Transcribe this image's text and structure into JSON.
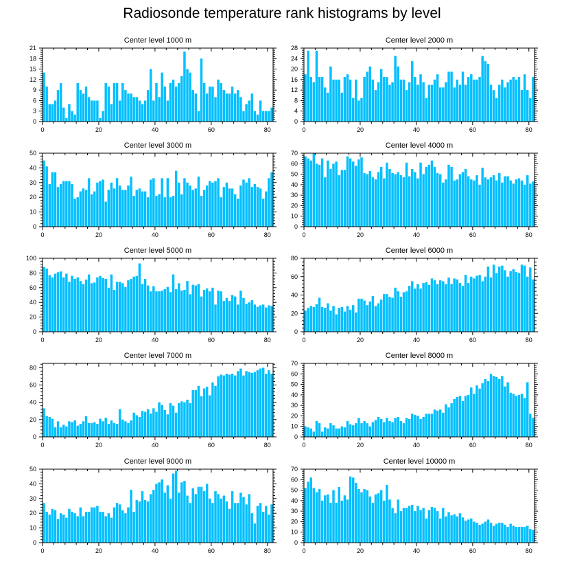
{
  "title": "Radiosonde temperature rank histograms by level",
  "colors": {
    "bar": "#00BFFF",
    "axis": "#000000",
    "background": "#ffffff"
  },
  "chart_data": [
    {
      "type": "bar",
      "title": "Center level 1000 m",
      "xlim": [
        0,
        82
      ],
      "ylim": [
        0,
        21
      ],
      "xticks": [
        0,
        20,
        40,
        60,
        80
      ],
      "yticks": [
        0,
        3,
        6,
        9,
        12,
        15,
        18,
        21
      ],
      "values": [
        14,
        10,
        5,
        5,
        6,
        9,
        11,
        4,
        1,
        5,
        3,
        2,
        11,
        9,
        8,
        10,
        7,
        6,
        6,
        6,
        1,
        3,
        11,
        10,
        5,
        11,
        11,
        6,
        11,
        9,
        8,
        8,
        7,
        7,
        6,
        5,
        6,
        9,
        15,
        6,
        11,
        7,
        14,
        10,
        6,
        11,
        12,
        10,
        11,
        13,
        20,
        15,
        14,
        9,
        8,
        3,
        18,
        11,
        8,
        10,
        10,
        7,
        12,
        11,
        9,
        8,
        8,
        10,
        8,
        9,
        7,
        3,
        5,
        6,
        8,
        3,
        2,
        6,
        3,
        3,
        3,
        4,
        4,
        3,
        4,
        5
      ]
    },
    {
      "type": "bar",
      "title": "Center level 2000 m",
      "xlim": [
        0,
        82
      ],
      "ylim": [
        0,
        28
      ],
      "xticks": [
        0,
        20,
        40,
        60,
        80
      ],
      "yticks": [
        0,
        4,
        8,
        12,
        16,
        20,
        24,
        28
      ],
      "values": [
        18,
        27,
        17,
        15,
        27,
        17,
        17,
        13,
        11,
        21,
        16,
        16,
        16,
        11,
        17,
        18,
        16,
        9,
        16,
        8,
        9,
        17,
        19,
        21,
        16,
        12,
        15,
        20,
        17,
        17,
        14,
        15,
        25,
        21,
        16,
        16,
        12,
        15,
        23,
        17,
        14,
        18,
        15,
        9,
        14,
        14,
        16,
        18,
        13,
        13,
        15,
        19,
        19,
        13,
        16,
        14,
        19,
        14,
        17,
        18,
        16,
        16,
        17,
        25,
        23,
        22,
        14,
        12,
        9,
        14,
        16,
        13,
        15,
        16,
        17,
        16,
        17,
        12,
        18,
        12,
        9,
        17,
        19,
        10,
        15,
        9
      ]
    },
    {
      "type": "bar",
      "title": "Center level 3000 m",
      "xlim": [
        0,
        82
      ],
      "ylim": [
        0,
        50
      ],
      "xticks": [
        0,
        20,
        40,
        60,
        80
      ],
      "yticks": [
        0,
        10,
        20,
        30,
        40,
        50
      ],
      "values": [
        45,
        41,
        29,
        37,
        37,
        27,
        29,
        31,
        31,
        31,
        29,
        19,
        20,
        24,
        26,
        25,
        33,
        22,
        24,
        30,
        31,
        32,
        17,
        25,
        30,
        26,
        33,
        28,
        25,
        25,
        28,
        34,
        21,
        25,
        26,
        24,
        24,
        20,
        32,
        33,
        21,
        22,
        33,
        20,
        33,
        20,
        21,
        38,
        30,
        22,
        33,
        30,
        28,
        25,
        26,
        34,
        21,
        25,
        28,
        31,
        30,
        31,
        33,
        20,
        27,
        30,
        26,
        26,
        22,
        19,
        28,
        32,
        30,
        33,
        27,
        29,
        27,
        26,
        19,
        24,
        33,
        37,
        42,
        32,
        35,
        25
      ]
    },
    {
      "type": "bar",
      "title": "Center level 4000 m",
      "xlim": [
        0,
        82
      ],
      "ylim": [
        0,
        70
      ],
      "xticks": [
        0,
        20,
        40,
        60,
        80
      ],
      "yticks": [
        0,
        10,
        20,
        30,
        40,
        50,
        60,
        70
      ],
      "values": [
        67,
        65,
        63,
        70,
        60,
        59,
        65,
        47,
        63,
        55,
        60,
        62,
        49,
        54,
        54,
        67,
        65,
        62,
        58,
        64,
        66,
        51,
        50,
        53,
        47,
        45,
        52,
        57,
        46,
        61,
        55,
        51,
        50,
        52,
        49,
        47,
        61,
        48,
        55,
        52,
        46,
        61,
        50,
        57,
        59,
        63,
        57,
        51,
        50,
        42,
        45,
        59,
        57,
        44,
        45,
        50,
        52,
        55,
        48,
        45,
        44,
        49,
        40,
        56,
        47,
        45,
        47,
        49,
        44,
        51,
        42,
        48,
        48,
        44,
        41,
        45,
        46,
        44,
        40,
        49,
        41,
        43,
        44,
        41,
        42,
        40
      ]
    },
    {
      "type": "bar",
      "title": "Center level 5000 m",
      "xlim": [
        0,
        82
      ],
      "ylim": [
        0,
        100
      ],
      "xticks": [
        0,
        20,
        40,
        60,
        80
      ],
      "yticks": [
        0,
        20,
        40,
        60,
        80,
        100
      ],
      "values": [
        88,
        86,
        77,
        74,
        79,
        81,
        82,
        74,
        79,
        68,
        76,
        72,
        74,
        69,
        65,
        71,
        78,
        66,
        67,
        74,
        76,
        73,
        72,
        60,
        78,
        57,
        68,
        68,
        66,
        61,
        70,
        72,
        75,
        76,
        93,
        65,
        72,
        63,
        55,
        62,
        55,
        55,
        56,
        58,
        61,
        54,
        78,
        58,
        66,
        56,
        57,
        69,
        51,
        64,
        63,
        65,
        48,
        57,
        59,
        55,
        60,
        37,
        56,
        55,
        42,
        46,
        42,
        50,
        48,
        37,
        56,
        46,
        38,
        40,
        43,
        37,
        34,
        36,
        37,
        33,
        36,
        35,
        36,
        33,
        37,
        35
      ]
    },
    {
      "type": "bar",
      "title": "Center level 6000 m",
      "xlim": [
        0,
        82
      ],
      "ylim": [
        0,
        80
      ],
      "xticks": [
        0,
        20,
        40,
        60,
        80
      ],
      "yticks": [
        0,
        20,
        40,
        60,
        80
      ],
      "values": [
        23,
        26,
        28,
        27,
        30,
        37,
        27,
        26,
        31,
        23,
        28,
        19,
        26,
        27,
        22,
        28,
        24,
        29,
        21,
        36,
        36,
        34,
        29,
        33,
        39,
        28,
        31,
        35,
        41,
        41,
        38,
        37,
        48,
        44,
        38,
        43,
        44,
        50,
        55,
        47,
        52,
        47,
        53,
        54,
        51,
        58,
        56,
        52,
        56,
        55,
        52,
        59,
        52,
        58,
        57,
        53,
        50,
        62,
        53,
        60,
        58,
        61,
        62,
        55,
        60,
        71,
        59,
        73,
        64,
        71,
        72,
        67,
        60,
        66,
        68,
        65,
        64,
        73,
        72,
        60,
        70,
        57,
        67,
        71,
        62,
        60
      ]
    },
    {
      "type": "bar",
      "title": "Center level 7000 m",
      "xlim": [
        0,
        82
      ],
      "ylim": [
        0,
        85
      ],
      "xticks": [
        0,
        20,
        40,
        60,
        80
      ],
      "yticks": [
        0,
        20,
        40,
        60,
        80
      ],
      "values": [
        33,
        24,
        23,
        21,
        11,
        18,
        11,
        14,
        12,
        18,
        17,
        19,
        13,
        15,
        18,
        24,
        16,
        16,
        17,
        15,
        21,
        18,
        22,
        15,
        19,
        16,
        15,
        32,
        20,
        18,
        16,
        19,
        28,
        25,
        23,
        30,
        29,
        32,
        27,
        33,
        29,
        40,
        37,
        31,
        26,
        39,
        36,
        28,
        39,
        41,
        40,
        43,
        39,
        54,
        54,
        59,
        47,
        56,
        58,
        48,
        63,
        59,
        70,
        72,
        71,
        73,
        72,
        73,
        71,
        76,
        79,
        71,
        76,
        75,
        74,
        75,
        77,
        79,
        80,
        73,
        77,
        73,
        74,
        75,
        76,
        73
      ]
    },
    {
      "type": "bar",
      "title": "Center level 8000 m",
      "xlim": [
        0,
        82
      ],
      "ylim": [
        0,
        70
      ],
      "xticks": [
        0,
        20,
        40,
        60,
        80
      ],
      "yticks": [
        0,
        10,
        20,
        30,
        40,
        50,
        60,
        70
      ],
      "values": [
        10,
        9,
        8,
        5,
        15,
        13,
        5,
        9,
        8,
        13,
        11,
        8,
        8,
        10,
        9,
        15,
        12,
        11,
        13,
        18,
        13,
        15,
        13,
        10,
        14,
        16,
        19,
        17,
        14,
        18,
        15,
        14,
        18,
        19,
        15,
        13,
        18,
        17,
        22,
        21,
        20,
        17,
        19,
        22,
        22,
        22,
        26,
        25,
        26,
        23,
        31,
        28,
        32,
        36,
        38,
        39,
        34,
        39,
        40,
        47,
        41,
        49,
        46,
        51,
        55,
        53,
        60,
        58,
        57,
        55,
        58,
        48,
        52,
        42,
        41,
        39,
        40,
        41,
        37,
        52,
        22,
        18,
        12,
        14,
        11,
        12
      ]
    },
    {
      "type": "bar",
      "title": "Center level 9000 m",
      "xlim": [
        0,
        82
      ],
      "ylim": [
        0,
        50
      ],
      "xticks": [
        0,
        20,
        40,
        60,
        80
      ],
      "yticks": [
        0,
        10,
        20,
        30,
        40,
        50
      ],
      "values": [
        27,
        21,
        19,
        23,
        22,
        16,
        20,
        19,
        17,
        23,
        21,
        20,
        18,
        24,
        18,
        21,
        21,
        24,
        24,
        25,
        21,
        21,
        18,
        20,
        17,
        24,
        27,
        26,
        22,
        20,
        24,
        36,
        21,
        29,
        28,
        35,
        29,
        28,
        33,
        36,
        40,
        41,
        43,
        34,
        39,
        30,
        47,
        49,
        34,
        41,
        42,
        32,
        27,
        37,
        33,
        38,
        38,
        35,
        40,
        30,
        27,
        35,
        33,
        30,
        32,
        28,
        23,
        35,
        27,
        27,
        34,
        31,
        26,
        33,
        20,
        13,
        25,
        27,
        21,
        25,
        19,
        26,
        23,
        18,
        22,
        19
      ]
    },
    {
      "type": "bar",
      "title": "Center level 10000 m",
      "xlim": [
        0,
        82
      ],
      "ylim": [
        0,
        70
      ],
      "xticks": [
        0,
        20,
        40,
        60,
        80
      ],
      "yticks": [
        0,
        10,
        20,
        30,
        40,
        50,
        60,
        70
      ],
      "values": [
        52,
        58,
        62,
        52,
        48,
        51,
        40,
        45,
        46,
        38,
        50,
        38,
        53,
        40,
        45,
        41,
        63,
        62,
        57,
        51,
        48,
        51,
        50,
        44,
        38,
        46,
        47,
        50,
        40,
        55,
        41,
        33,
        28,
        41,
        30,
        33,
        33,
        35,
        36,
        30,
        35,
        31,
        33,
        23,
        31,
        34,
        33,
        30,
        23,
        33,
        25,
        29,
        26,
        27,
        25,
        28,
        24,
        21,
        22,
        23,
        20,
        19,
        17,
        18,
        20,
        22,
        19,
        16,
        18,
        19,
        19,
        17,
        15,
        18,
        16,
        15,
        15,
        15,
        15,
        16,
        13,
        12,
        11,
        10,
        9,
        8
      ]
    }
  ]
}
